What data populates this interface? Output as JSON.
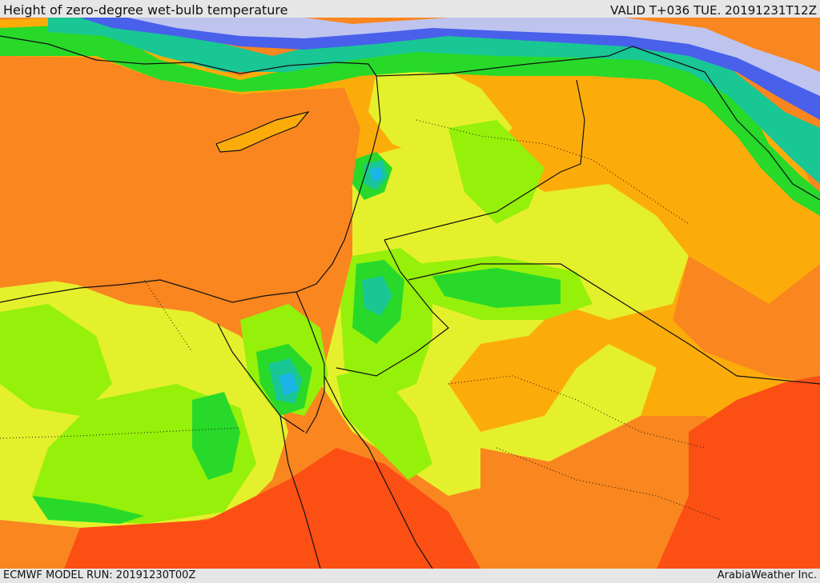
{
  "header": {
    "title": "Height of zero-degree wet-bulb temperature",
    "valid_time": "VALID T+036 TUE. 20191231T12Z"
  },
  "footer": {
    "model_run": "ECMWF MODEL RUN: 20191230T00Z",
    "credit": "ArabiaWeather Inc."
  },
  "palette": {
    "red": "#fb4f14",
    "dark_orange": "#f9861f",
    "orange": "#fcac0a",
    "yellow": "#e5f02c",
    "lime": "#95f00a",
    "green": "#28d92a",
    "teal": "#19c794",
    "cyan": "#1bb5e8",
    "blue": "#4860ea",
    "lavender": "#bfc4ef",
    "border_line": "#111111"
  }
}
